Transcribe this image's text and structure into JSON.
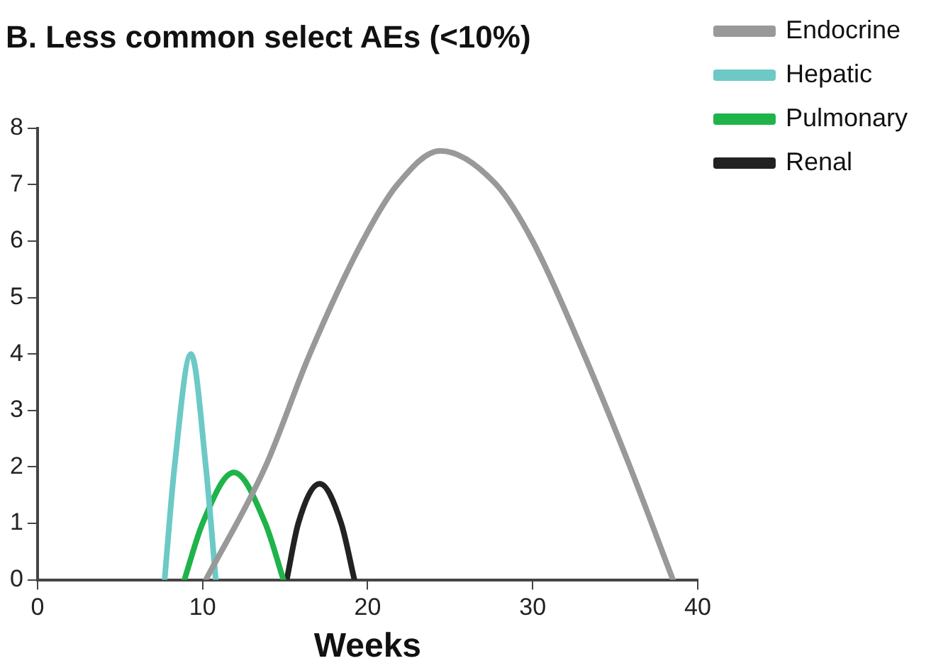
{
  "chart_data": {
    "type": "line",
    "title": "B. Less common select AEs (<10%)",
    "xlabel": "Weeks",
    "xlim": [
      0,
      40
    ],
    "xticks": [
      0,
      10,
      20,
      30,
      40
    ],
    "ylim": [
      0,
      8
    ],
    "yticks": [
      0,
      1,
      2,
      3,
      4,
      5,
      6,
      7,
      8
    ],
    "grid": false,
    "legend": "top right",
    "marker": "none",
    "line_style": "solid",
    "series": [
      {
        "name": "Endocrine",
        "color": "#999999",
        "x": [
          10.2,
          13.8,
          16.5,
          19.7,
          21.8,
          24.4,
          27.8,
          30.0,
          33.1,
          35.9,
          38.5
        ],
        "values": [
          0,
          2,
          4,
          6,
          7,
          7.6,
          7,
          6,
          4,
          2,
          0
        ]
      },
      {
        "name": "Hepatic",
        "color": "#6cc9c6",
        "x": [
          7.7,
          8.3,
          9.3,
          10.2,
          10.8
        ],
        "values": [
          0,
          2,
          4,
          2,
          0
        ]
      },
      {
        "name": "Pulmonary",
        "color": "#1fb34a",
        "x": [
          8.9,
          10.0,
          11.9,
          13.8,
          14.9
        ],
        "values": [
          0,
          1,
          1.9,
          1,
          0
        ]
      },
      {
        "name": "Renal",
        "color": "#222222",
        "x": [
          15.1,
          15.8,
          17.1,
          18.4,
          19.2
        ],
        "values": [
          0,
          1,
          1.7,
          1,
          0
        ]
      }
    ]
  }
}
